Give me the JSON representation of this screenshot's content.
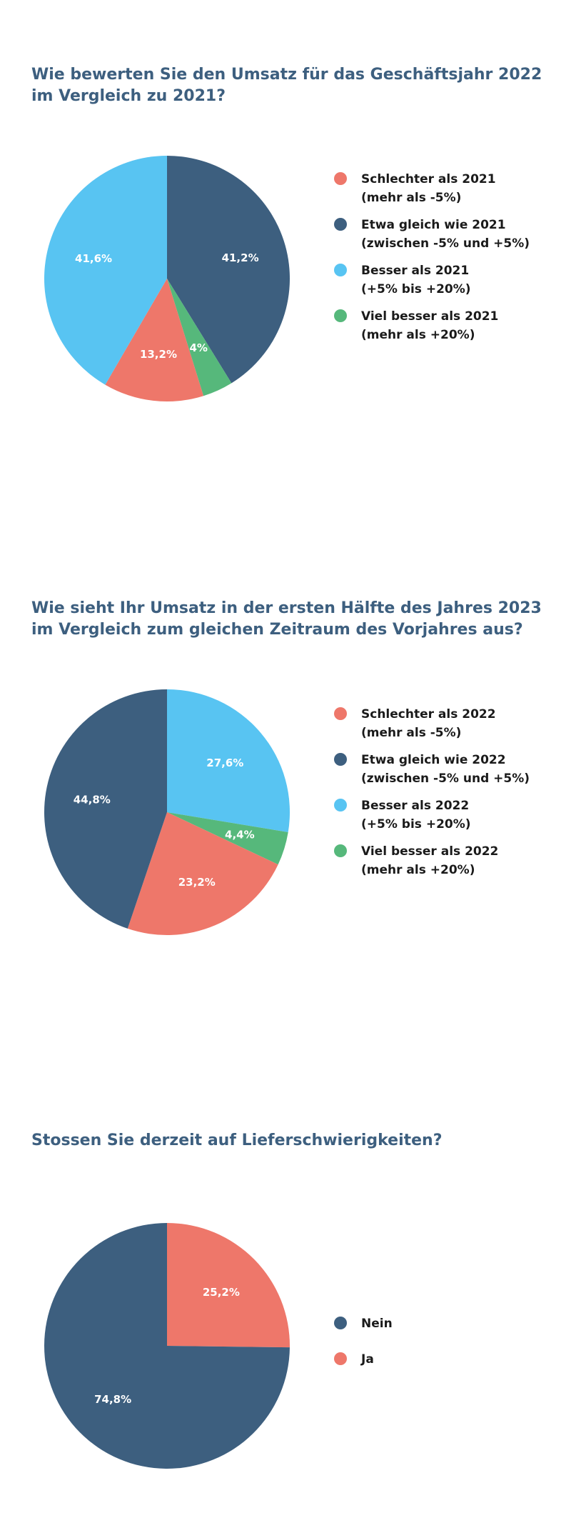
{
  "colors": {
    "red": "#ee776a",
    "navy": "#3d5f7f",
    "blue": "#58c4f2",
    "green": "#56b87b",
    "title": "#3d5f7f"
  },
  "chart_data": [
    {
      "type": "pie",
      "title": "Wie bewerten Sie den Umsatz für das Geschäftsjahr 2022 im Vergleich zu 2021?",
      "slices": [
        {
          "label": "Etwa gleich wie 2021",
          "value": 41.2,
          "display": "41,2%",
          "color": "#3d5f7f"
        },
        {
          "label": "Viel besser als 2021",
          "value": 4,
          "display": "4%",
          "color": "#56b87b"
        },
        {
          "label": "Schlechter als 2021",
          "value": 13.2,
          "display": "13,2%",
          "color": "#ee776a"
        },
        {
          "label": "Besser als 2021",
          "value": 41.6,
          "display": "41,6%",
          "color": "#58c4f2"
        }
      ],
      "legend": [
        {
          "line1": "Schlechter als 2021",
          "line2": "(mehr als -5%)",
          "color": "#ee776a"
        },
        {
          "line1": "Etwa gleich wie 2021",
          "line2": "(zwischen -5% und +5%)",
          "color": "#3d5f7f"
        },
        {
          "line1": "Besser als 2021",
          "line2": "(+5% bis +20%)",
          "color": "#58c4f2"
        },
        {
          "line1": "Viel besser als 2021",
          "line2": "(mehr als +20%)",
          "color": "#56b87b"
        }
      ],
      "legend_position": "right"
    },
    {
      "type": "pie",
      "title": "Wie sieht Ihr Umsatz in der ersten Hälfte des Jahres 2023 im Vergleich zum gleichen Zeitraum des Vorjahres aus?",
      "slices": [
        {
          "label": "Besser als 2022",
          "value": 27.6,
          "display": "27,6%",
          "color": "#58c4f2"
        },
        {
          "label": "Viel besser als 2022",
          "value": 4.4,
          "display": "4,4%",
          "color": "#56b87b"
        },
        {
          "label": "Schlechter als 2022",
          "value": 23.2,
          "display": "23,2%",
          "color": "#ee776a"
        },
        {
          "label": "Etwa gleich wie 2022",
          "value": 44.8,
          "display": "44,8%",
          "color": "#3d5f7f"
        }
      ],
      "legend": [
        {
          "line1": "Schlechter als 2022",
          "line2": "(mehr als -5%)",
          "color": "#ee776a"
        },
        {
          "line1": "Etwa gleich wie 2022",
          "line2": "(zwischen -5% und +5%)",
          "color": "#3d5f7f"
        },
        {
          "line1": "Besser als 2022",
          "line2": "(+5% bis +20%)",
          "color": "#58c4f2"
        },
        {
          "line1": "Viel besser als 2022",
          "line2": "(mehr als +20%)",
          "color": "#56b87b"
        }
      ],
      "legend_position": "right"
    },
    {
      "type": "pie",
      "title": "Stossen Sie derzeit auf Lieferschwierigkeiten?",
      "slices": [
        {
          "label": "Ja",
          "value": 25.2,
          "display": "25,2%",
          "color": "#ee776a"
        },
        {
          "label": "Nein",
          "value": 74.8,
          "display": "74,8%",
          "color": "#3d5f7f"
        }
      ],
      "legend": [
        {
          "line1": "Nein",
          "line2": "",
          "color": "#3d5f7f"
        },
        {
          "line1": "Ja",
          "line2": "",
          "color": "#ee776a"
        }
      ],
      "legend_position": "right"
    }
  ]
}
